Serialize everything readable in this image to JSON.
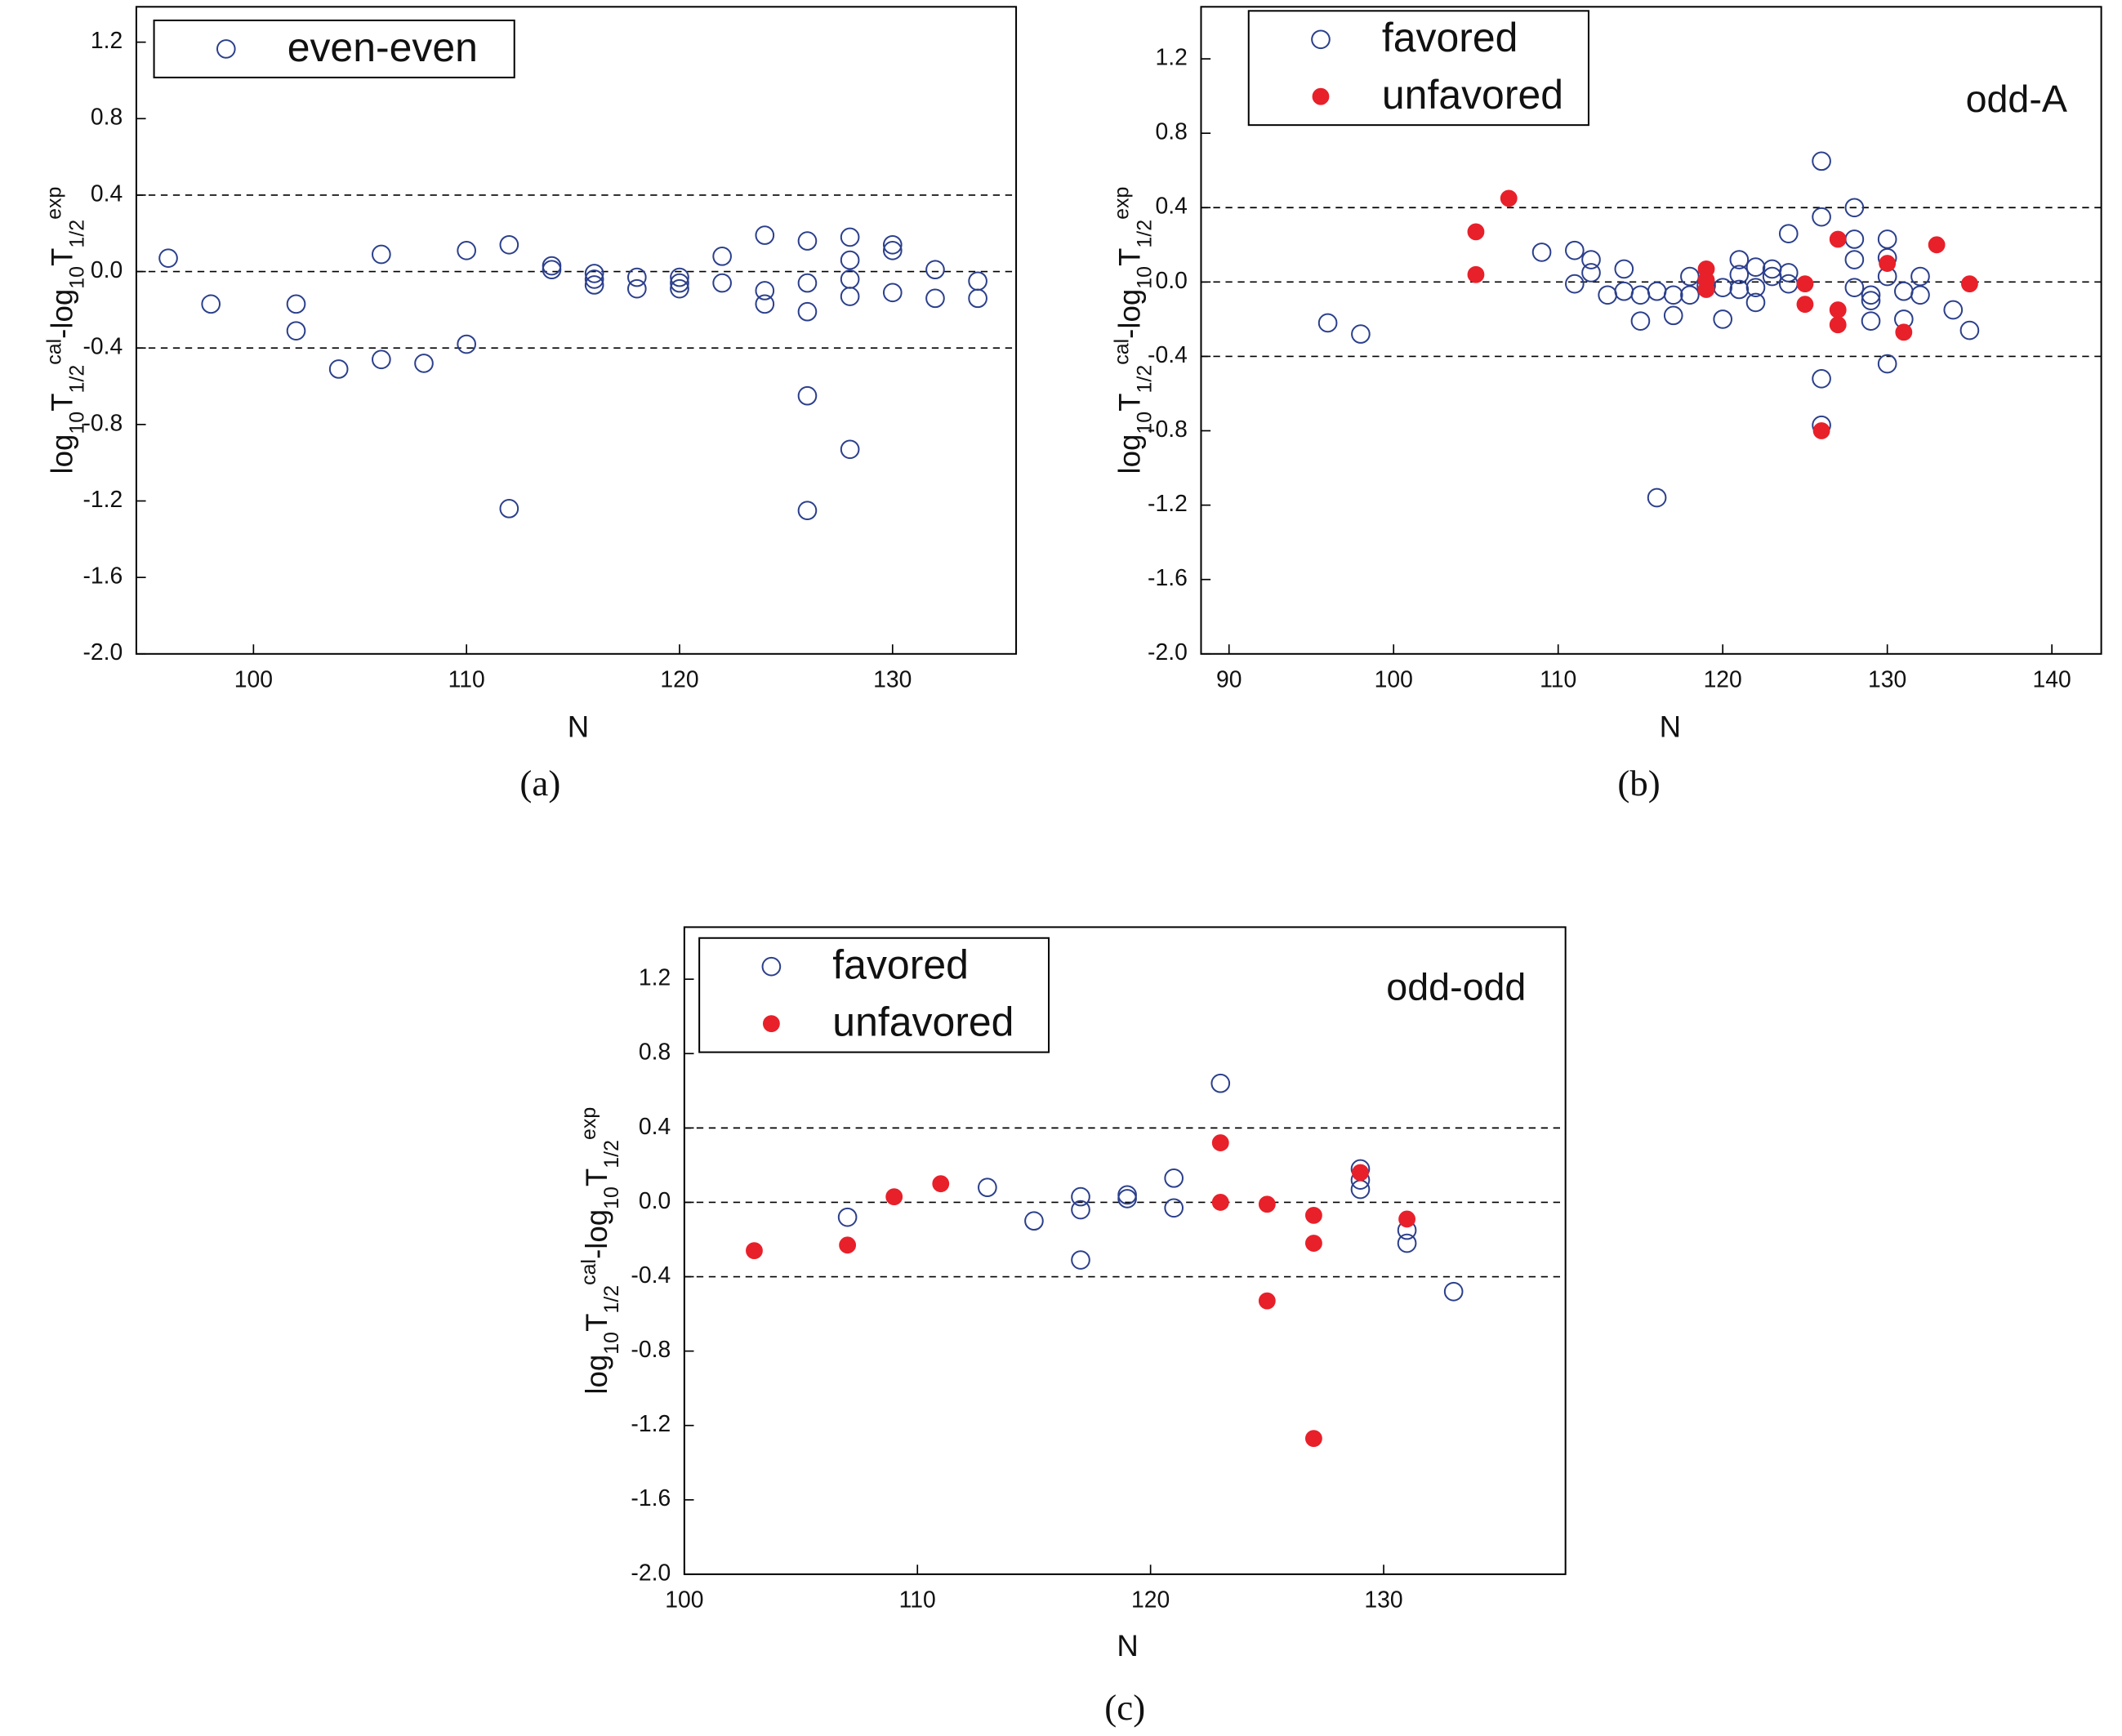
{
  "chart_data": [
    {
      "type": "scatter",
      "caption": "(a)",
      "xlabel": "N",
      "ylabel": [
        {
          "text": "log"
        },
        {
          "text": "10",
          "shift": "sub"
        },
        {
          "text": "T"
        },
        {
          "text": "1/2",
          "shift": "sub"
        },
        {
          "text": "cal",
          "shift": "sup"
        },
        {
          "text": "-log"
        },
        {
          "text": "10",
          "shift": "sub"
        },
        {
          "text": "T"
        },
        {
          "text": "1/2",
          "shift": "sub"
        },
        {
          "text": "exp",
          "shift": "sup"
        }
      ],
      "xlim": [
        94.5,
        135.8
      ],
      "ylim": [
        -2.0,
        1.385
      ],
      "xticks": [
        100,
        110,
        120,
        130
      ],
      "yticks": [
        {
          "value": -2,
          "label": "-2.0"
        },
        -1.6,
        -1.2,
        -0.8,
        -0.4,
        {
          "value": 0,
          "label": "0.0"
        },
        0.4,
        0.8,
        1.2
      ],
      "hlines": [
        0.4,
        0,
        -0.4
      ],
      "legend": "upper left",
      "series": [
        {
          "name": "even-even",
          "color": "#2b3f8c",
          "marker": "open",
          "x": [
            96,
            98,
            102,
            102,
            104,
            106,
            106,
            108,
            110,
            110,
            112,
            112,
            114,
            114,
            116,
            116,
            116,
            118,
            118,
            120,
            120,
            120,
            122,
            122,
            124,
            124,
            124,
            126,
            126,
            126,
            126,
            126,
            128,
            128,
            128,
            128,
            128,
            130,
            130,
            130,
            132,
            132,
            134,
            134
          ],
          "values": [
            0.07,
            -0.17,
            -0.17,
            -0.31,
            -0.51,
            0.09,
            -0.46,
            -0.48,
            0.11,
            -0.38,
            0.14,
            -1.24,
            0.03,
            0.01,
            -0.01,
            -0.07,
            -0.04,
            -0.03,
            -0.09,
            -0.03,
            -0.09,
            -0.06,
            0.08,
            -0.06,
            0.19,
            -0.1,
            -0.17,
            0.16,
            -0.06,
            -0.21,
            -0.65,
            -1.25,
            0.18,
            0.06,
            -0.04,
            -0.13,
            -0.93,
            0.14,
            0.11,
            -0.11,
            0.01,
            -0.14,
            -0.05,
            -0.14
          ]
        }
      ]
    },
    {
      "type": "scatter",
      "caption": "(b)",
      "xlabel": "N",
      "annotation": "odd-A",
      "ylabel": [
        {
          "text": "log"
        },
        {
          "text": "10",
          "shift": "sub"
        },
        {
          "text": "T"
        },
        {
          "text": "1/2",
          "shift": "sub"
        },
        {
          "text": "cal",
          "shift": "sup"
        },
        {
          "text": "-log"
        },
        {
          "text": "10",
          "shift": "sub"
        },
        {
          "text": "T"
        },
        {
          "text": "1/2",
          "shift": "sub"
        },
        {
          "text": "exp",
          "shift": "sup"
        }
      ],
      "xlim": [
        88.3,
        143
      ],
      "ylim": [
        -2.0,
        1.48
      ],
      "xticks": [
        90,
        100,
        110,
        120,
        130,
        140
      ],
      "yticks": [
        {
          "value": -2,
          "label": "-2.0"
        },
        -1.6,
        -1.2,
        -0.8,
        -0.4,
        {
          "value": 0,
          "label": "0.0"
        },
        0.4,
        0.8,
        1.2
      ],
      "hlines": [
        0.4,
        0,
        -0.4
      ],
      "legend": "upper left",
      "series": [
        {
          "name": "favored",
          "color": "#2b3f8c",
          "marker": "open",
          "x": [
            96,
            98,
            109,
            111,
            111,
            112,
            112,
            113,
            114,
            114,
            115,
            115,
            116,
            116,
            117,
            117,
            118,
            118,
            119,
            120,
            120,
            121,
            121,
            121,
            122,
            122,
            122,
            123,
            123,
            124,
            124,
            124,
            126,
            126,
            126,
            126,
            128,
            128,
            128,
            128,
            129,
            129,
            129,
            130,
            130,
            130,
            130,
            131,
            131,
            132,
            132,
            134,
            135
          ],
          "values": [
            -0.22,
            -0.28,
            0.16,
            0.17,
            -0.01,
            0.12,
            0.05,
            -0.07,
            0.07,
            -0.05,
            -0.07,
            -0.21,
            -0.05,
            -1.16,
            -0.07,
            -0.18,
            0.03,
            -0.07,
            -0.02,
            -0.03,
            -0.2,
            0.12,
            0.04,
            -0.04,
            0.08,
            -0.03,
            -0.11,
            0.07,
            0.03,
            0.26,
            0.05,
            -0.01,
            0.65,
            0.35,
            -0.52,
            -0.77,
            0.4,
            0.23,
            0.12,
            -0.03,
            -0.07,
            -0.1,
            -0.21,
            0.23,
            0.13,
            0.03,
            -0.44,
            -0.05,
            -0.2,
            0.03,
            -0.07,
            -0.15,
            -0.26
          ]
        },
        {
          "name": "unfavored",
          "color": "#e8202a",
          "marker": "filled",
          "x": [
            105,
            105,
            107,
            119,
            119,
            119,
            125,
            125,
            126,
            127,
            127,
            127,
            130,
            131,
            133,
            135
          ],
          "values": [
            0.27,
            0.04,
            0.45,
            0.07,
            0.01,
            -0.04,
            -0.01,
            -0.12,
            -0.8,
            0.23,
            -0.15,
            -0.23,
            0.1,
            -0.27,
            0.2,
            -0.01
          ]
        }
      ]
    },
    {
      "type": "scatter",
      "caption": "(c)",
      "xlabel": "N",
      "annotation": "odd-odd",
      "ylabel": [
        {
          "text": "log"
        },
        {
          "text": "10",
          "shift": "sub"
        },
        {
          "text": "T"
        },
        {
          "text": "1/2",
          "shift": "sub"
        },
        {
          "text": "cal",
          "shift": "sup"
        },
        {
          "text": "-log"
        },
        {
          "text": "10",
          "shift": "sub"
        },
        {
          "text": "T"
        },
        {
          "text": "1/2",
          "shift": "sub"
        },
        {
          "text": "exp",
          "shift": "sup"
        }
      ],
      "xlim": [
        100,
        137.8
      ],
      "ylim": [
        -2.0,
        1.48
      ],
      "xticks": [
        100,
        110,
        120,
        130
      ],
      "yticks": [
        {
          "value": -2,
          "label": "-2.0"
        },
        -1.6,
        -1.2,
        -0.8,
        -0.4,
        {
          "value": 0,
          "label": "0.0"
        },
        0.4,
        0.8,
        1.2
      ],
      "hlines": [
        0.4,
        0,
        -0.4
      ],
      "legend": "upper left",
      "series": [
        {
          "name": "favored",
          "color": "#2b3f8c",
          "marker": "open",
          "x": [
            107,
            113,
            115,
            117,
            117,
            117,
            119,
            119,
            121,
            121,
            123,
            129,
            129,
            129,
            131,
            131,
            133
          ],
          "values": [
            -0.08,
            0.08,
            -0.1,
            0.03,
            -0.04,
            -0.31,
            0.04,
            0.02,
            0.13,
            -0.03,
            0.64,
            0.18,
            0.12,
            0.07,
            -0.15,
            -0.22,
            -0.48
          ]
        },
        {
          "name": "unfavored",
          "color": "#e8202a",
          "marker": "filled",
          "x": [
            103,
            107,
            109,
            111,
            123,
            123,
            125,
            125,
            127,
            127,
            127,
            129,
            131
          ],
          "values": [
            -0.26,
            -0.23,
            0.03,
            0.1,
            0.32,
            0.0,
            -0.01,
            -0.53,
            -0.07,
            -0.22,
            -1.27,
            0.16,
            -0.09
          ]
        }
      ]
    }
  ]
}
